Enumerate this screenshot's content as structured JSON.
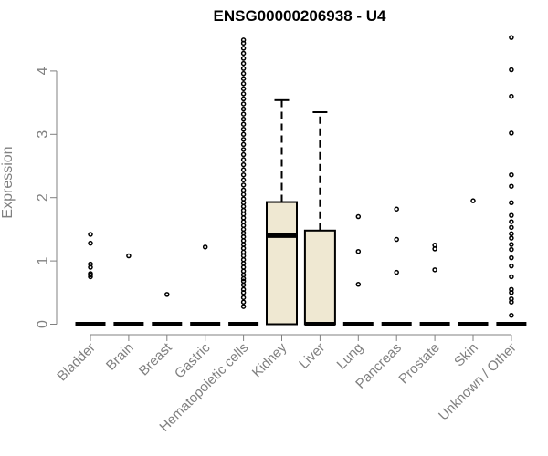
{
  "chart_data": {
    "type": "box",
    "title": "ENSG00000206938 - U4",
    "xlabel": "",
    "ylabel": "Expression",
    "ylim": [
      0,
      4.5
    ],
    "yticks": [
      0,
      1,
      2,
      3,
      4
    ],
    "grid": false,
    "colors": {
      "box_fill": "#efe8d2",
      "box_stroke": "#000000",
      "axis": "#808080",
      "text": "#808080",
      "title": "#000000"
    },
    "categories": [
      "Bladder",
      "Brain",
      "Breast",
      "Gastric",
      "Hematopoietic cells",
      "Kidney",
      "Liver",
      "Lung",
      "Pancreas",
      "Prostate",
      "Skin",
      "Unknown / Other"
    ],
    "boxes": [
      {
        "category": "Bladder",
        "min": 0,
        "q1": 0,
        "median": 0,
        "q3": 0,
        "max": 0,
        "outliers": [
          0.75,
          0.78,
          0.8,
          0.9,
          0.95,
          1.28,
          1.42
        ]
      },
      {
        "category": "Brain",
        "min": 0,
        "q1": 0,
        "median": 0,
        "q3": 0,
        "max": 0,
        "outliers": [
          1.08
        ]
      },
      {
        "category": "Breast",
        "min": 0,
        "q1": 0,
        "median": 0,
        "q3": 0,
        "max": 0,
        "outliers": [
          0.47
        ]
      },
      {
        "category": "Gastric",
        "min": 0,
        "q1": 0,
        "median": 0,
        "q3": 0,
        "max": 0,
        "outliers": [
          1.22
        ]
      },
      {
        "category": "Hematopoietic cells",
        "min": 0,
        "q1": 0,
        "median": 0,
        "q3": 0,
        "max": 0,
        "outliers": [
          0.28,
          0.35,
          0.42,
          0.5,
          0.55,
          0.62,
          0.68,
          0.72,
          0.78,
          0.84,
          0.9,
          0.96,
          1.02,
          1.08,
          1.14,
          1.2,
          1.26,
          1.32,
          1.38,
          1.44,
          1.5,
          1.56,
          1.62,
          1.68,
          1.74,
          1.8,
          1.86,
          1.92,
          1.98,
          2.05,
          2.12,
          2.2,
          2.28,
          2.36,
          2.44,
          2.52,
          2.6,
          2.68,
          2.76,
          2.84,
          2.92,
          3.0,
          3.08,
          3.16,
          3.24,
          3.32,
          3.4,
          3.48,
          3.56,
          3.64,
          3.72,
          3.8,
          3.88,
          3.96,
          4.04,
          4.12,
          4.2,
          4.28,
          4.36,
          4.44,
          4.49
        ]
      },
      {
        "category": "Kidney",
        "min": 0,
        "q1": 0,
        "median": 1.4,
        "q3": 1.93,
        "max": 3.54,
        "outliers": []
      },
      {
        "category": "Liver",
        "min": 0,
        "q1": 0,
        "median": 0,
        "q3": 1.48,
        "max": 3.35,
        "outliers": []
      },
      {
        "category": "Lung",
        "min": 0,
        "q1": 0,
        "median": 0,
        "q3": 0,
        "max": 0,
        "outliers": [
          0.63,
          1.15,
          1.7
        ]
      },
      {
        "category": "Pancreas",
        "min": 0,
        "q1": 0,
        "median": 0,
        "q3": 0,
        "max": 0,
        "outliers": [
          0.82,
          1.34,
          1.82
        ]
      },
      {
        "category": "Prostate",
        "min": 0,
        "q1": 0,
        "median": 0,
        "q3": 0,
        "max": 0,
        "outliers": [
          0.86,
          1.19,
          1.25
        ]
      },
      {
        "category": "Skin",
        "min": 0,
        "q1": 0,
        "median": 0,
        "q3": 0,
        "max": 0,
        "outliers": [
          1.95
        ]
      },
      {
        "category": "Unknown / Other",
        "min": 0,
        "q1": 0,
        "median": 0,
        "q3": 0,
        "max": 0,
        "outliers": [
          0.14,
          0.35,
          0.4,
          0.5,
          0.55,
          0.75,
          0.92,
          1.05,
          1.18,
          1.26,
          1.36,
          1.43,
          1.53,
          1.62,
          1.72,
          1.92,
          2.18,
          2.36,
          3.02,
          3.6,
          4.02,
          4.53
        ]
      }
    ]
  }
}
